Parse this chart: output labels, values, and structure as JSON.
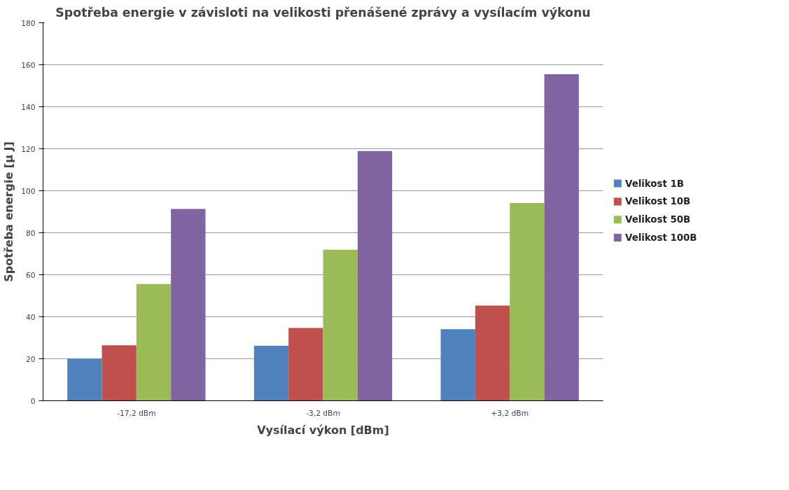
{
  "chart_data": {
    "type": "bar",
    "title": "Spotřeba energie v závisloti na velikosti přenášené zprávy a vysílacím výkonu",
    "xlabel": "Vysílací výkon [dBm]",
    "ylabel": "Spotřeba energie [µ J]",
    "categories": [
      "-17,2 dBm",
      "-3,2 dBm",
      "+3,2 dBm"
    ],
    "series": [
      {
        "name": "Velikost 1B",
        "color": "#4f81bd",
        "values": [
          20,
          26.2,
          34.1
        ]
      },
      {
        "name": "Velikost 10B",
        "color": "#c0504d",
        "values": [
          26.4,
          34.7,
          45.3
        ]
      },
      {
        "name": "Velikost 50B",
        "color": "#9bbb59",
        "values": [
          55.6,
          71.9,
          94.2
        ]
      },
      {
        "name": "Velikost 100B",
        "color": "#8064a2",
        "values": [
          91.3,
          118.9,
          155.5
        ]
      }
    ],
    "ylim": [
      0,
      180
    ],
    "yticks": [
      0,
      20,
      40,
      60,
      80,
      100,
      120,
      140,
      160,
      180
    ],
    "grid": "y",
    "legend": "right"
  }
}
